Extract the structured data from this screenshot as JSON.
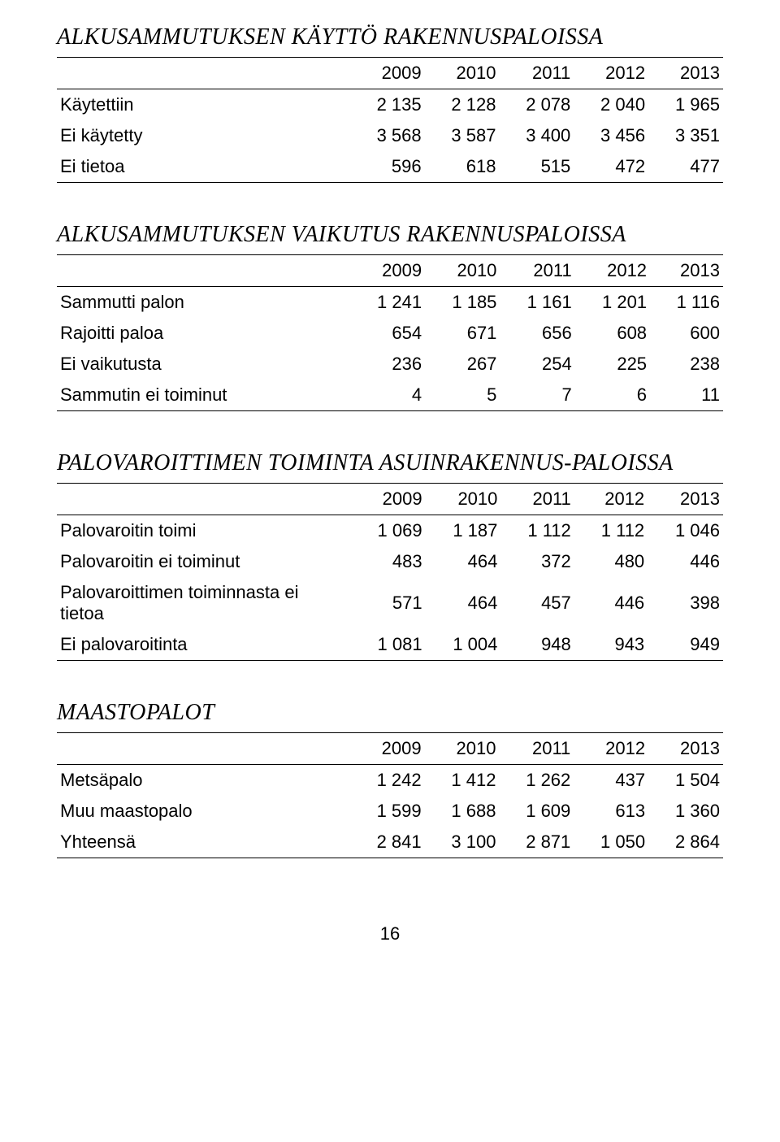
{
  "sections": [
    {
      "heading": "ALKUSAMMUTUKSEN KÄYTTÖ RAKENNUSPALOISSA",
      "columns": [
        "",
        "2009",
        "2010",
        "2011",
        "2012",
        "2013"
      ],
      "rows": [
        [
          "Käytettiin",
          "2 135",
          "2 128",
          "2 078",
          "2 040",
          "1 965"
        ],
        [
          "Ei käytetty",
          "3 568",
          "3 587",
          "3 400",
          "3 456",
          "3 351"
        ],
        [
          "Ei tietoa",
          "596",
          "618",
          "515",
          "472",
          "477"
        ]
      ]
    },
    {
      "heading": "ALKUSAMMUTUKSEN VAIKUTUS RAKENNUSPALOISSA",
      "columns": [
        "",
        "2009",
        "2010",
        "2011",
        "2012",
        "2013"
      ],
      "rows": [
        [
          "Sammutti palon",
          "1 241",
          "1 185",
          "1 161",
          "1 201",
          "1 116"
        ],
        [
          "Rajoitti paloa",
          "654",
          "671",
          "656",
          "608",
          "600"
        ],
        [
          "Ei vaikutusta",
          "236",
          "267",
          "254",
          "225",
          "238"
        ],
        [
          "Sammutin ei toiminut",
          "4",
          "5",
          "7",
          "6",
          "11"
        ]
      ]
    },
    {
      "heading": "PALOVAROITTIMEN TOIMINTA ASUINRAKENNUS-PALOISSA",
      "columns": [
        "",
        "2009",
        "2010",
        "2011",
        "2012",
        "2013"
      ],
      "rows": [
        [
          "Palovaroitin toimi",
          "1 069",
          "1 187",
          "1 112",
          "1 112",
          "1 046"
        ],
        [
          "Palovaroitin ei toiminut",
          "483",
          "464",
          "372",
          "480",
          "446"
        ],
        [
          "Palovaroittimen toiminnasta ei tietoa",
          "571",
          "464",
          "457",
          "446",
          "398"
        ],
        [
          "Ei palovaroitinta",
          "1 081",
          "1 004",
          "948",
          "943",
          "949"
        ]
      ]
    },
    {
      "heading": "MAASTOPALOT",
      "columns": [
        "",
        "2009",
        "2010",
        "2011",
        "2012",
        "2013"
      ],
      "rows": [
        [
          "Metsäpalo",
          "1 242",
          "1 412",
          "1 262",
          "437",
          "1 504"
        ],
        [
          "Muu maastopalo",
          "1 599",
          "1 688",
          "1 609",
          "613",
          "1 360"
        ],
        [
          "Yhteensä",
          "2 841",
          "3 100",
          "2 871",
          "1 050",
          "2 864"
        ]
      ]
    }
  ],
  "page_number": "16"
}
